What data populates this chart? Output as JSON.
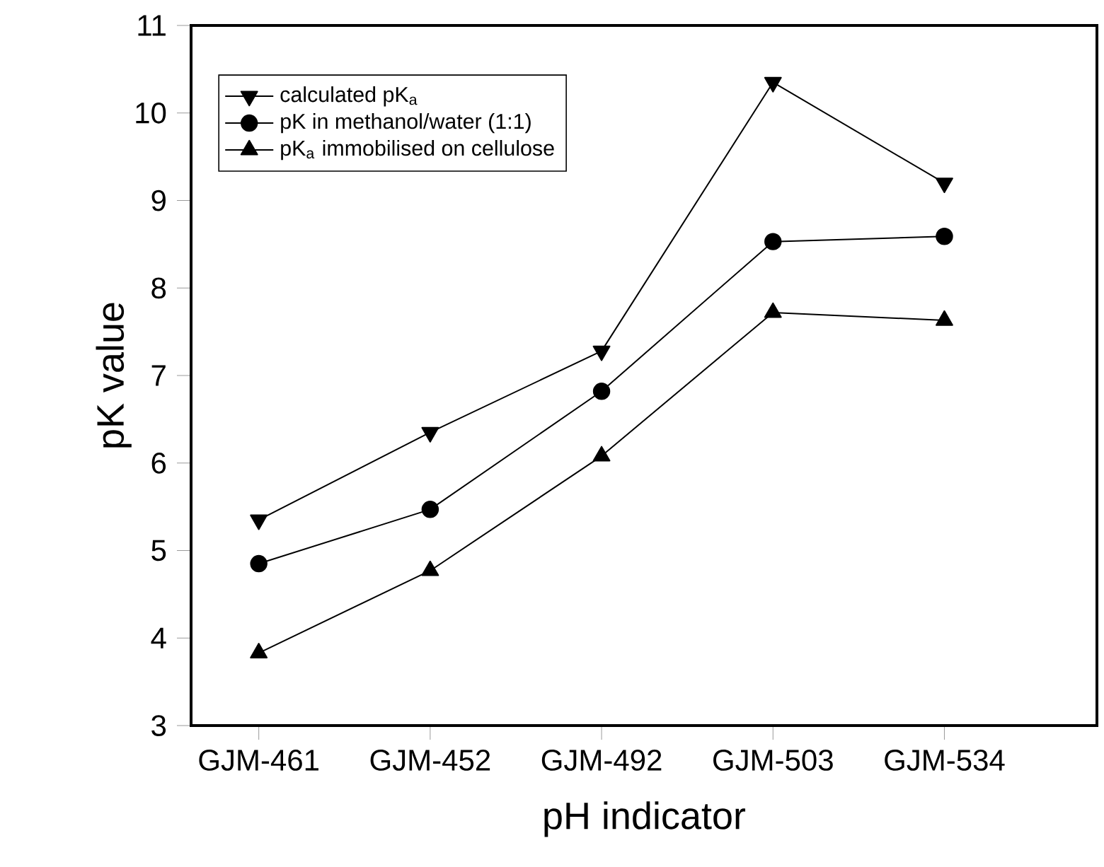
{
  "chart_data": {
    "type": "line",
    "xlabel": "pH indicator",
    "ylabel": "pK value",
    "categories": [
      "GJM-461",
      "GJM-452",
      "GJM-492",
      "GJM-503",
      "GJM-534"
    ],
    "ylim": [
      3,
      11
    ],
    "yticks": [
      3,
      4,
      5,
      6,
      7,
      8,
      9,
      10,
      11
    ],
    "legend": "top left",
    "grid": false,
    "line_style": "solid",
    "series": [
      {
        "name": "calculated pK$_{a}$",
        "color": "#000000",
        "marker": "triangle-down",
        "values": [
          5.35,
          6.35,
          7.28,
          10.35,
          9.2
        ]
      },
      {
        "name": "pK in methanol/water (1:1)",
        "color": "#000000",
        "marker": "circle",
        "values": [
          4.85,
          5.47,
          6.82,
          8.53,
          8.59
        ]
      },
      {
        "name": "pK$_{a}$ immobilised on cellulose",
        "color": "#000000",
        "marker": "triangle",
        "values": [
          3.83,
          4.77,
          6.08,
          7.72,
          7.63
        ]
      }
    ]
  }
}
